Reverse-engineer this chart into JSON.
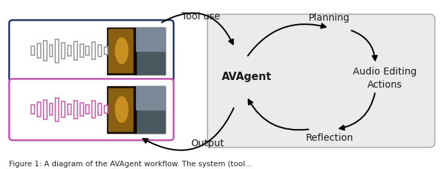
{
  "fig_width": 6.4,
  "fig_height": 2.45,
  "dpi": 100,
  "bg_color": "#ffffff",
  "caption": "Figure 1: A diagram of the AVAgent workflow. The system (tool...",
  "caption_fontsize": 8.0,
  "label_tool_use": "Tool use",
  "label_output": "Output",
  "label_planning": "Planning",
  "label_reflection": "Reflection",
  "label_avagent": "AVAgent",
  "label_audio_editing": "Audio Editing\nActions",
  "text_color_main": "#1a1a1a",
  "pink_waveform_color": "#d060b0",
  "gray_waveform_color": "#999999",
  "box1_border_color": "#1a3060",
  "box2_border_color": "#c050b0",
  "right_box_color": "#ebebeb",
  "right_box_edge": "#aaaaaa"
}
